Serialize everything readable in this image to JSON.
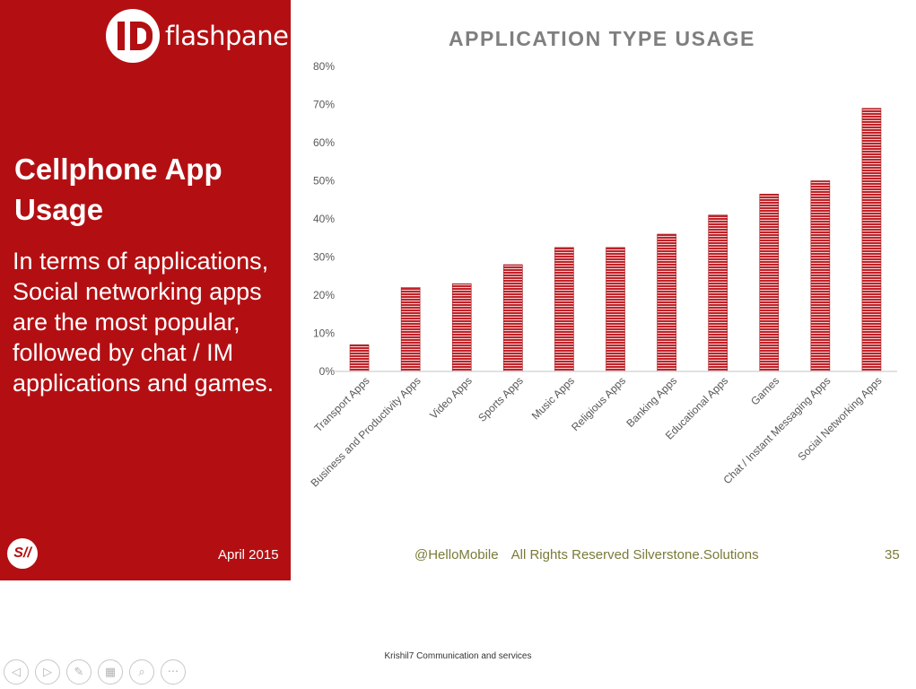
{
  "brand": {
    "name": "flashpanel",
    "footer_logo_text": "S//"
  },
  "slide": {
    "title": "Cellphone App Usage",
    "body": "In terms of applications, Social networking apps are the most popular, followed by chat / IM applications and games."
  },
  "footer": {
    "date": "April 2015",
    "handle": "@HelloMobile",
    "rights": "All Rights Reserved Silverstone.Solutions",
    "page": "35"
  },
  "caption": "Krishil7 Communication and services",
  "toolbar": [
    {
      "icon": "previous-icon",
      "glyph": "◁"
    },
    {
      "icon": "next-icon",
      "glyph": "▷"
    },
    {
      "icon": "pen-icon",
      "glyph": "✎"
    },
    {
      "icon": "slides-icon",
      "glyph": "▦"
    },
    {
      "icon": "zoom-icon",
      "glyph": "⌕"
    },
    {
      "icon": "more-icon",
      "glyph": "···"
    }
  ],
  "colors": {
    "panel": "#b30f12",
    "bar": "#c0232a",
    "title": "#7f7f7f",
    "footer_text": "#7a7a3a"
  },
  "chart_data": {
    "type": "bar",
    "title": "APPLICATION TYPE USAGE",
    "categories": [
      "Transport Apps",
      "Business and Productivity Apps",
      "Video Apps",
      "Sports Apps",
      "Music Apps",
      "Religious Apps",
      "Banking Apps",
      "Educational Apps",
      "Games",
      "Chat / Instant Messaging Apps",
      "Social Networking Apps"
    ],
    "values": [
      7,
      22,
      23,
      28,
      32.5,
      32.5,
      36,
      41,
      46.5,
      50,
      69
    ],
    "ylim": [
      0,
      80
    ],
    "yticks": [
      "0%",
      "10%",
      "20%",
      "30%",
      "40%",
      "50%",
      "60%",
      "70%",
      "80%"
    ],
    "y_unit": "%",
    "grid": false,
    "legend": "none"
  }
}
